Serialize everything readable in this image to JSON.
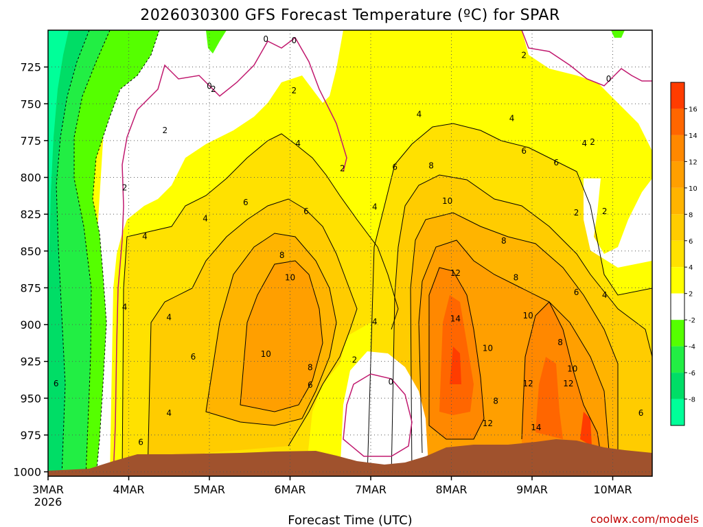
{
  "chart_data": {
    "type": "heatmap",
    "title": "2026030300 GFS Forecast Temperature (ºC) for SPAR",
    "xlabel": "Forecast Time (UTC)",
    "ylabel": "",
    "credit": "coolwx.com/models",
    "x_ticks": [
      "3MAR",
      "4MAR",
      "5MAR",
      "6MAR",
      "7MAR",
      "8MAR",
      "9MAR",
      "10MAR"
    ],
    "x_tick_sub": "2026",
    "xlim_days": [
      0,
      7.5
    ],
    "y_ticks": [
      725,
      750,
      775,
      800,
      825,
      850,
      875,
      900,
      925,
      950,
      975,
      1000
    ],
    "ylim_hpa": [
      700,
      1003
    ],
    "grid": true,
    "colorbar_levels": [
      16,
      14,
      12,
      10,
      8,
      6,
      4,
      2,
      -2,
      -4,
      -6,
      -8
    ],
    "colorbar_colors": [
      "#ff3c00",
      "#ff6600",
      "#ff8800",
      "#ff9f00",
      "#ffb400",
      "#ffcc00",
      "#ffe100",
      "#ffff00",
      "#ffffff",
      "#55ff00",
      "#22ee44",
      "#00dd66",
      "#00ff99"
    ],
    "terrain_color": "#a0522d",
    "contour_labels": [
      {
        "value": "0",
        "day": 2.7,
        "p": 706
      },
      {
        "value": "0",
        "day": 3.05,
        "p": 707
      },
      {
        "value": "0",
        "day": 2.0,
        "p": 738
      },
      {
        "value": "2",
        "day": 2.05,
        "p": 740
      },
      {
        "value": "2",
        "day": 1.45,
        "p": 768
      },
      {
        "value": "2",
        "day": 3.05,
        "p": 741
      },
      {
        "value": "4",
        "day": 3.1,
        "p": 777
      },
      {
        "value": "2",
        "day": 0.95,
        "p": 807
      },
      {
        "value": "4",
        "day": 1.95,
        "p": 828
      },
      {
        "value": "6",
        "day": 2.45,
        "p": 817
      },
      {
        "value": "6",
        "day": 3.2,
        "p": 823
      },
      {
        "value": "8",
        "day": 2.9,
        "p": 853
      },
      {
        "value": "10",
        "day": 3.0,
        "p": 868
      },
      {
        "value": "4",
        "day": 1.2,
        "p": 840
      },
      {
        "value": "4",
        "day": 0.95,
        "p": 888
      },
      {
        "value": "4",
        "day": 1.5,
        "p": 895
      },
      {
        "value": "4",
        "day": 4.6,
        "p": 757
      },
      {
        "value": "2",
        "day": 3.65,
        "p": 794
      },
      {
        "value": "4",
        "day": 4.05,
        "p": 820
      },
      {
        "value": "4",
        "day": 4.05,
        "p": 898
      },
      {
        "value": "2",
        "day": 3.8,
        "p": 924
      },
      {
        "value": "0",
        "day": 4.25,
        "p": 939
      },
      {
        "value": "6",
        "day": 4.3,
        "p": 793
      },
      {
        "value": "8",
        "day": 4.75,
        "p": 792
      },
      {
        "value": "10",
        "day": 4.95,
        "p": 816
      },
      {
        "value": "12",
        "day": 5.05,
        "p": 865
      },
      {
        "value": "14",
        "day": 5.05,
        "p": 896
      },
      {
        "value": "10",
        "day": 5.45,
        "p": 916
      },
      {
        "value": "8",
        "day": 5.55,
        "p": 952
      },
      {
        "value": "12",
        "day": 5.45,
        "p": 967
      },
      {
        "value": "4",
        "day": 5.75,
        "p": 760
      },
      {
        "value": "6",
        "day": 5.9,
        "p": 782
      },
      {
        "value": "6",
        "day": 6.3,
        "p": 790
      },
      {
        "value": "4",
        "day": 6.65,
        "p": 777
      },
      {
        "value": "2",
        "day": 6.75,
        "p": 776
      },
      {
        "value": "2",
        "day": 6.55,
        "p": 824
      },
      {
        "value": "2",
        "day": 6.9,
        "p": 823
      },
      {
        "value": "2",
        "day": 5.9,
        "p": 717
      },
      {
        "value": "0",
        "day": 6.95,
        "p": 733
      },
      {
        "value": "8",
        "day": 5.65,
        "p": 843
      },
      {
        "value": "8",
        "day": 5.8,
        "p": 868
      },
      {
        "value": "10",
        "day": 5.95,
        "p": 894
      },
      {
        "value": "8",
        "day": 6.35,
        "p": 912
      },
      {
        "value": "12",
        "day": 5.95,
        "p": 940
      },
      {
        "value": "12",
        "day": 6.45,
        "p": 940
      },
      {
        "value": "10",
        "day": 6.5,
        "p": 930
      },
      {
        "value": "14",
        "day": 6.05,
        "p": 970
      },
      {
        "value": "6",
        "day": 6.55,
        "p": 878
      },
      {
        "value": "4",
        "day": 6.9,
        "p": 880
      },
      {
        "value": "6",
        "day": 7.35,
        "p": 960
      },
      {
        "value": "6",
        "day": 1.8,
        "p": 922
      },
      {
        "value": "6",
        "day": 1.15,
        "p": 980
      },
      {
        "value": "10",
        "day": 2.7,
        "p": 920
      },
      {
        "value": "8",
        "day": 3.25,
        "p": 929
      },
      {
        "value": "6",
        "day": 3.25,
        "p": 941
      },
      {
        "value": "4",
        "day": 1.5,
        "p": 960
      },
      {
        "value": "6",
        "day": 0.1,
        "p": 940
      }
    ]
  }
}
